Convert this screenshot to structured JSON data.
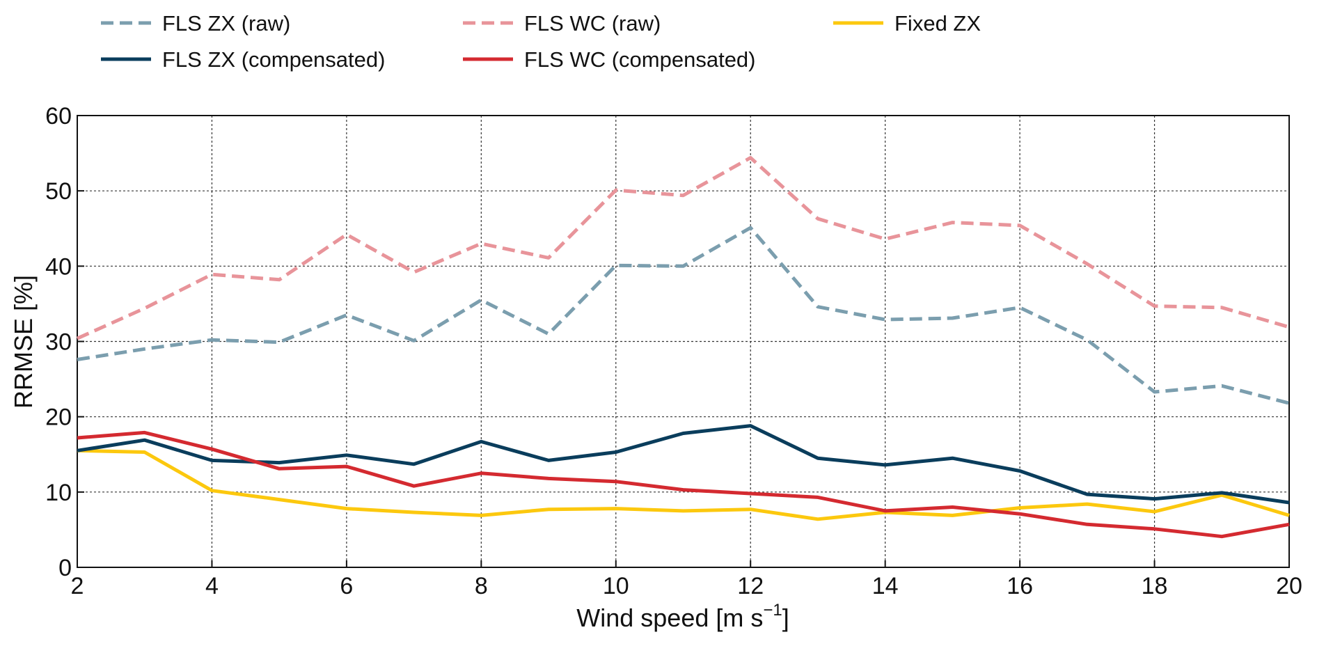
{
  "chart_data": {
    "type": "line",
    "title": "",
    "xlabel": "Wind speed [m s",
    "xlabel_sup": "−1",
    "xlabel_close": "]",
    "ylabel": "RRMSE [%]",
    "xlim": [
      2,
      20
    ],
    "ylim": [
      0,
      60
    ],
    "xticks": [
      2,
      4,
      6,
      8,
      10,
      12,
      14,
      16,
      18,
      20
    ],
    "yticks": [
      0,
      10,
      20,
      30,
      40,
      50,
      60
    ],
    "grid": true,
    "legend_position": "top",
    "x": [
      2,
      3,
      4,
      5,
      6,
      7,
      8,
      9,
      10,
      11,
      12,
      13,
      14,
      15,
      16,
      17,
      18,
      19,
      20
    ],
    "series": [
      {
        "name": "FLS ZX (raw)",
        "color": "#7b9eae",
        "style": "dashed",
        "values": [
          27.6,
          29.0,
          30.2,
          29.9,
          33.5,
          30.1,
          35.5,
          31.0,
          40.1,
          40.0,
          45.1,
          34.6,
          32.9,
          33.1,
          34.5,
          30.2,
          23.3,
          24.1,
          21.8
        ]
      },
      {
        "name": "FLS WC (raw)",
        "color": "#e8949a",
        "style": "dashed",
        "values": [
          30.4,
          34.4,
          38.9,
          38.2,
          44.2,
          39.2,
          43.0,
          41.1,
          50.1,
          49.4,
          54.4,
          46.3,
          43.6,
          45.8,
          45.4,
          40.3,
          34.7,
          34.5,
          31.9
        ]
      },
      {
        "name": "Fixed ZX",
        "color": "#fcc80e",
        "style": "solid",
        "values": [
          15.5,
          15.3,
          10.2,
          9.0,
          7.8,
          7.3,
          6.9,
          7.7,
          7.8,
          7.5,
          7.7,
          6.4,
          7.3,
          6.9,
          7.9,
          8.4,
          7.4,
          9.6,
          6.9
        ]
      },
      {
        "name": "FLS ZX (compensated)",
        "color": "#0a3d5c",
        "style": "solid",
        "values": [
          15.5,
          16.9,
          14.2,
          13.9,
          14.9,
          13.7,
          16.7,
          14.2,
          15.3,
          17.8,
          18.8,
          14.5,
          13.6,
          14.5,
          12.8,
          9.7,
          9.1,
          9.9,
          8.6
        ]
      },
      {
        "name": "FLS WC (compensated)",
        "color": "#d42a30",
        "style": "solid",
        "values": [
          17.2,
          17.9,
          15.7,
          13.1,
          13.4,
          10.8,
          12.5,
          11.8,
          11.4,
          10.3,
          9.8,
          9.3,
          7.5,
          8.0,
          7.1,
          5.7,
          5.1,
          4.1,
          5.7
        ]
      }
    ]
  }
}
